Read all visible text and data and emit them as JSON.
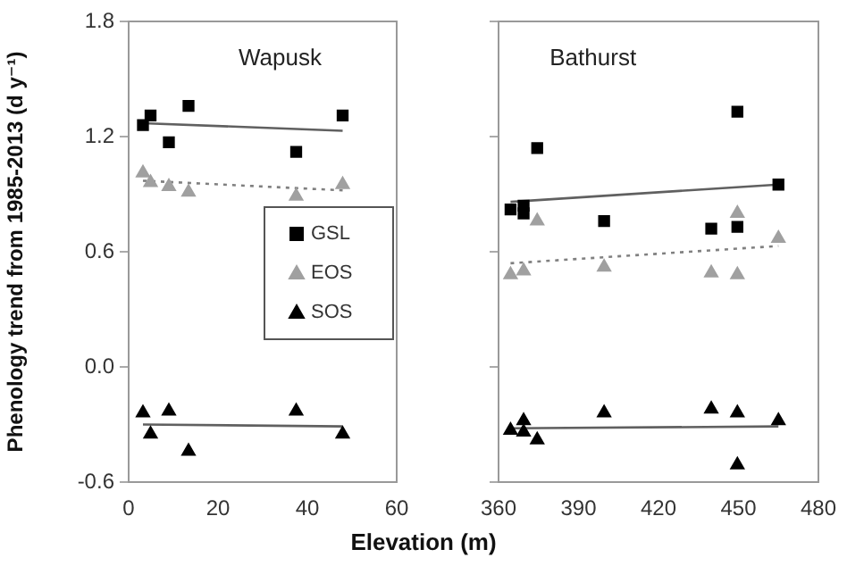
{
  "chart_data": [
    {
      "type": "scatter",
      "annotations": [
        "Wapusk"
      ],
      "ylabel": "Phenology trend from 1985-2013 (d y⁻¹)",
      "xlabel": "Elevation (m)",
      "xlim": [
        0,
        60
      ],
      "xticks": [
        0,
        20,
        40,
        60
      ],
      "ylim": [
        -0.6,
        1.8
      ],
      "yticks": [
        -0.6,
        {
          "value": 0,
          "label": "0.0"
        },
        0.6,
        1.2,
        1.8
      ],
      "grid": false,
      "legend": "right",
      "series": [
        {
          "name": "GSL",
          "type": "scatter",
          "marker": "square",
          "color": "#000000",
          "x": [
            3.2,
            4.9,
            9,
            13.4,
            37.5,
            47.9
          ],
          "values": [
            1.26,
            1.31,
            1.17,
            1.36,
            1.12,
            1.31
          ]
        },
        {
          "name": "EOS",
          "type": "scatter",
          "marker": "triangle",
          "color": "#a0a0a0",
          "x": [
            3.2,
            4.9,
            9,
            13.4,
            37.5,
            47.9
          ],
          "values": [
            1.01,
            0.96,
            0.94,
            0.91,
            0.89,
            0.95
          ]
        },
        {
          "name": "SOS",
          "type": "scatter",
          "marker": "triangle",
          "color": "#000000",
          "x": [
            3.2,
            4.9,
            9,
            13.4,
            37.5,
            47.9
          ],
          "values": [
            -0.24,
            -0.35,
            -0.23,
            -0.44,
            -0.23,
            -0.35
          ]
        },
        {
          "type": "line",
          "color": "#606060",
          "line_style": "solid",
          "marker": "none",
          "x": [
            3.2,
            47.9
          ],
          "values": [
            1.27,
            1.23
          ]
        },
        {
          "type": "line",
          "color": "#808080",
          "line_style": "dotted",
          "marker": "none",
          "x": [
            3.2,
            47.9
          ],
          "values": [
            0.97,
            0.92
          ]
        },
        {
          "type": "line",
          "color": "#606060",
          "line_style": "solid",
          "marker": "none",
          "x": [
            3.2,
            47.9
          ],
          "values": [
            -0.3,
            -0.31
          ]
        }
      ]
    },
    {
      "type": "scatter",
      "annotations": [
        "Bathurst"
      ],
      "xlim": [
        360,
        480
      ],
      "xticks": [
        360,
        390,
        420,
        450,
        480
      ],
      "ylim": [
        -0.6,
        1.8
      ],
      "yticks": [
        {
          "value": -0.6,
          "label": null
        },
        {
          "value": 0,
          "label": null
        },
        {
          "value": 0.6,
          "label": null
        },
        {
          "value": 1.2,
          "label": null
        },
        {
          "value": 1.8,
          "label": null
        }
      ],
      "tick_labels": "x",
      "grid": false,
      "series": [
        {
          "type": "scatter",
          "marker": "square",
          "color": "#000000",
          "x": [
            364.5,
            369.4,
            369.4,
            374.5,
            399.6,
            439.8,
            449.6,
            449.6,
            465
          ],
          "values": [
            0.82,
            0.84,
            0.8,
            1.14,
            0.76,
            0.72,
            1.33,
            0.73,
            0.95
          ]
        },
        {
          "type": "scatter",
          "marker": "triangle",
          "color": "#a0a0a0",
          "x": [
            364.5,
            369.4,
            374.5,
            399.6,
            439.8,
            449.6,
            449.6,
            465
          ],
          "values": [
            0.48,
            0.5,
            0.76,
            0.52,
            0.49,
            0.8,
            0.48,
            0.67
          ]
        },
        {
          "type": "scatter",
          "marker": "triangle",
          "color": "#000000",
          "x": [
            364.5,
            369.4,
            369.4,
            374.5,
            399.6,
            439.8,
            449.6,
            449.6,
            465
          ],
          "values": [
            -0.33,
            -0.28,
            -0.34,
            -0.38,
            -0.24,
            -0.22,
            -0.24,
            -0.51,
            -0.28
          ]
        },
        {
          "type": "line",
          "color": "#606060",
          "line_style": "solid",
          "marker": "none",
          "x": [
            364.5,
            465
          ],
          "values": [
            0.86,
            0.95
          ]
        },
        {
          "type": "line",
          "color": "#808080",
          "line_style": "dotted",
          "marker": "none",
          "x": [
            364.5,
            465
          ],
          "values": [
            0.54,
            0.63
          ]
        },
        {
          "type": "line",
          "color": "#606060",
          "line_style": "solid",
          "marker": "none",
          "x": [
            364.5,
            465
          ],
          "values": [
            -0.32,
            -0.31
          ]
        }
      ]
    }
  ]
}
